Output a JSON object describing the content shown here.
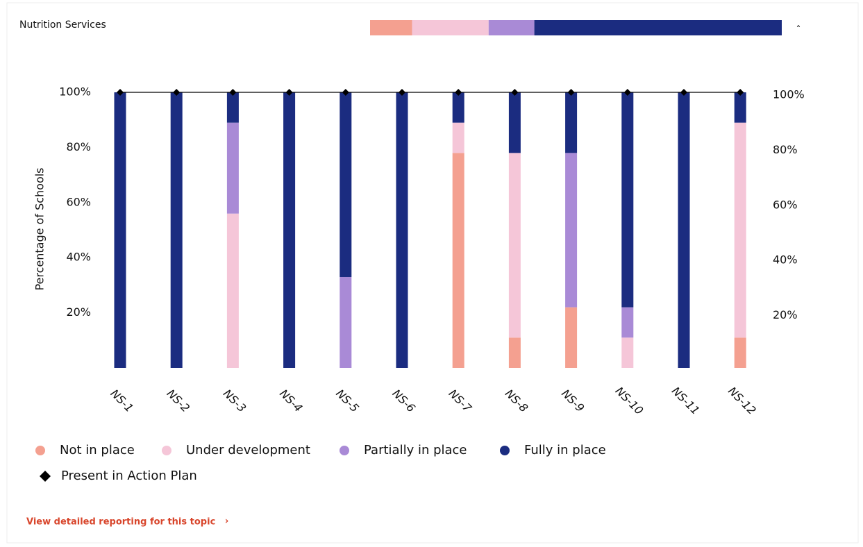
{
  "header": {
    "title": "Nutrition Services",
    "collapse_icon": "ˆ"
  },
  "summary": {
    "values": [
      10.2,
      18.6,
      11.1,
      60.1
    ],
    "colors": [
      "#f4a090",
      "#f5c6d8",
      "#a98ad6",
      "#1b2c80"
    ]
  },
  "chart_data": {
    "type": "bar",
    "stacked": true,
    "y_label": "Percentage of Schools",
    "categories": [
      "NS-1",
      "NS-2",
      "NS-3",
      "NS-4",
      "NS-5",
      "NS-6",
      "NS-7",
      "NS-8",
      "NS-9",
      "NS-10",
      "NS-11",
      "NS-12"
    ],
    "series": [
      {
        "name": "Not in place",
        "color": "#f4a090",
        "values": [
          0,
          0,
          0,
          0,
          0,
          0,
          78,
          11,
          22,
          0,
          0,
          11
        ]
      },
      {
        "name": "Under development",
        "color": "#f5c6d8",
        "values": [
          0,
          0,
          56,
          0,
          0,
          0,
          11,
          67,
          0,
          11,
          0,
          78
        ]
      },
      {
        "name": "Partially in place",
        "color": "#a98ad6",
        "values": [
          0,
          0,
          33,
          0,
          33,
          0,
          0,
          0,
          56,
          11,
          0,
          0
        ]
      },
      {
        "name": "Fully in place",
        "color": "#1b2c80",
        "values": [
          100,
          100,
          11,
          100,
          67,
          100,
          11,
          22,
          22,
          78,
          100,
          11
        ]
      },
      {
        "name": "Present in Action Plan",
        "color": "#000000",
        "type": "line",
        "marker": "diamond",
        "values": [
          100,
          100,
          100,
          100,
          100,
          100,
          100,
          100,
          100,
          100,
          100,
          100
        ]
      }
    ],
    "ylim": [
      0,
      100
    ],
    "yticks": [
      {
        "value": 20,
        "label": "20%"
      },
      {
        "value": 40,
        "label": "40%"
      },
      {
        "value": 60,
        "label": "60%"
      },
      {
        "value": 80,
        "label": "80%"
      },
      {
        "value": 100,
        "label": "100%"
      }
    ],
    "y2lim": [
      0,
      100
    ],
    "y2ticks": [
      {
        "value": 20,
        "label": "20%"
      },
      {
        "value": 40,
        "label": "40%"
      },
      {
        "value": 60,
        "label": "60%"
      },
      {
        "value": 80,
        "label": "80%"
      },
      {
        "value": 100,
        "label": "100%"
      }
    ],
    "grid": false,
    "legend": "bottom-left"
  },
  "footer": {
    "link": "View detailed reporting for this topic",
    "link_arrow": "›"
  }
}
